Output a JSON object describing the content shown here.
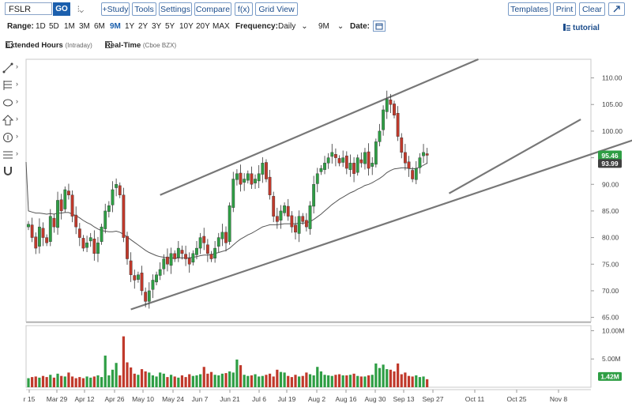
{
  "toolbar": {
    "symbol": "FSLR",
    "go_label": "GO",
    "add_study": "+Study",
    "tools": "Tools",
    "settings": "Settings",
    "compare": "Compare",
    "fx": "f(x)",
    "grid_view": "Grid View",
    "templates": "Templates",
    "print": "Print",
    "clear": "Clear",
    "expand_icon": "expand-icon"
  },
  "range": {
    "label": "Range:",
    "options": [
      "1D",
      "5D",
      "1M",
      "3M",
      "6M",
      "9M",
      "1Y",
      "2Y",
      "3Y",
      "5Y",
      "10Y",
      "20Y",
      "MAX"
    ],
    "selected": "9M",
    "frequency_label": "Frequency:",
    "frequency_value": "Daily",
    "period_value": "9M",
    "date_label": "Date:",
    "tutorial": "tutorial"
  },
  "options": {
    "extended_hours": "Extended Hours",
    "extended_hours_note": "(Intraday)",
    "real_time": "Real-Time",
    "real_time_note": "(Cboe BZX)"
  },
  "colors": {
    "up": "#2e9e44",
    "down": "#c0392b",
    "channel": "#777777",
    "ma": "#555555",
    "last_price_bg": "#2e9e44",
    "ma_price_bg": "#404040"
  },
  "chart_data": {
    "type": "candlestick",
    "price_axis": {
      "min": 65,
      "max": 110,
      "ticks": [
        "110.00",
        "105.00",
        "100.00",
        "95.00",
        "90.00",
        "85.00",
        "80.00",
        "75.00",
        "70.00",
        "65.00"
      ]
    },
    "volume_axis": {
      "ticks": [
        "10.00M",
        "5.00M"
      ]
    },
    "x_ticks": [
      "r 15",
      "Mar 29",
      "Apr 12",
      "Apr 26",
      "May 10",
      "May 24",
      "Jun 7",
      "Jun 21",
      "Jul 6",
      "Jul 19",
      "Aug 2",
      "Aug 16",
      "Aug 30",
      "Sep 13",
      "Sep 27",
      "Oct 11",
      "Oct 25",
      "Nov 8"
    ],
    "last_price": "95.46",
    "ma_price": "93.99",
    "last_volume": "1.42M",
    "closes": [
      82.5,
      80,
      78,
      82,
      80,
      79,
      84,
      82,
      87,
      85,
      89,
      88,
      84,
      82,
      80,
      78,
      79,
      80,
      77,
      79,
      82,
      85,
      86,
      89,
      90,
      88,
      80,
      76,
      73,
      72,
      73,
      70,
      68,
      70,
      72,
      73,
      74,
      76,
      75,
      77,
      76,
      78,
      77,
      76,
      75,
      77,
      78,
      80,
      79,
      77,
      76,
      78,
      80,
      81,
      79,
      86,
      91,
      92,
      90,
      91,
      92,
      90,
      91,
      92,
      94,
      91,
      88,
      84,
      83,
      85,
      86,
      84,
      82,
      81,
      84,
      83,
      82,
      86,
      90,
      92,
      93,
      94,
      95,
      96,
      95,
      94,
      95,
      93,
      94,
      92,
      95,
      94,
      96,
      93,
      94,
      98,
      100,
      104,
      106,
      105,
      103,
      99,
      96,
      94,
      93,
      91,
      93,
      95,
      96,
      95.46
    ],
    "ma": [
      85,
      84.8,
      84.6,
      84.6,
      84.5,
      84.4,
      84.5,
      84.4,
      84.6,
      84.6,
      84.7,
      84.7,
      84.4,
      84.1,
      83.7,
      83.2,
      82.8,
      82.5,
      82,
      81.6,
      81.3,
      81.2,
      81.1,
      81.1,
      81.2,
      81,
      80.6,
      80.1,
      79.6,
      79.1,
      78.6,
      78.1,
      77.6,
      77.2,
      76.9,
      76.6,
      76.4,
      76.3,
      76.2,
      76.2,
      76.1,
      76.2,
      76.2,
      76.2,
      76.2,
      76.3,
      76.4,
      76.6,
      76.7,
      76.7,
      76.8,
      77,
      77.2,
      77.4,
      77.6,
      78,
      78.6,
      79.2,
      79.7,
      80.1,
      80.5,
      80.8,
      81.2,
      81.6,
      82,
      82.2,
      82.4,
      82.4,
      82.4,
      82.5,
      82.6,
      82.6,
      82.6,
      82.6,
      82.7,
      82.7,
      82.8,
      83,
      83.4,
      83.9,
      84.4,
      85,
      85.6,
      86.2,
      86.7,
      87.2,
      87.6,
      88,
      88.4,
      88.7,
      89.1,
      89.4,
      89.8,
      90,
      90.3,
      90.7,
      91.1,
      91.6,
      92.2,
      92.6,
      92.9,
      93,
      93.1,
      93.1,
      93,
      92.9,
      93,
      93.2,
      93.6,
      93.99
    ],
    "volume_m": [
      1.6,
      1.8,
      1.9,
      1.7,
      2.0,
      1.8,
      2.2,
      1.7,
      2.4,
      2.0,
      1.9,
      2.6,
      1.9,
      1.6,
      1.8,
      1.6,
      1.9,
      1.7,
      1.9,
      2.1,
      1.8,
      5.6,
      2.1,
      3.1,
      4.3,
      2.1,
      9.0,
      4.4,
      3.5,
      2.4,
      2.2,
      3.2,
      2.8,
      2.6,
      2.1,
      1.9,
      2.6,
      2.4,
      1.8,
      2.2,
      1.9,
      1.7,
      2.1,
      1.8,
      2.3,
      2.0,
      2.1,
      2.3,
      3.6,
      2.4,
      2.7,
      2.2,
      2.1,
      2.4,
      2.5,
      2.8,
      2.6,
      4.9,
      3.9,
      2.2,
      2.0,
      2.1,
      2.3,
      1.9,
      2.0,
      2.2,
      2.4,
      1.9,
      3.1,
      2.7,
      2.6,
      2.0,
      1.8,
      2.2,
      1.9,
      2.0,
      2.6,
      2.3,
      2.1,
      3.6,
      2.8,
      2.2,
      2.1,
      2.0,
      2.2,
      2.3,
      2.1,
      2.1,
      2.2,
      2.4,
      2.0,
      1.9,
      1.9,
      2.1,
      2.2,
      4.2,
      3.4,
      4.0,
      3.2,
      3.1,
      2.8,
      4.2,
      2.3,
      2.6,
      2.0,
      1.9,
      2.1,
      1.8,
      1.9,
      1.42
    ]
  }
}
